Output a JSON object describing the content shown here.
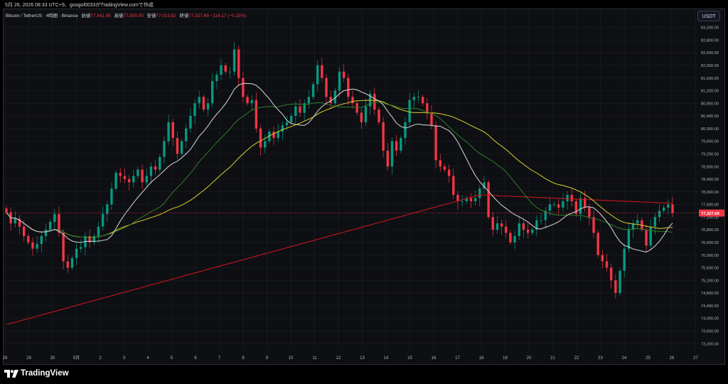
{
  "header": {
    "timestamp": "5月 26, 2026 08:33 UTC+9、googol0033がTradingView.comで作成",
    "symbol": "Bitcoin / TetherUS · 4時間 · Binance",
    "ohlc": {
      "open_label": "始値",
      "open": "77,441.85",
      "high_label": "高値",
      "high": "77,500.00",
      "low_label": "安値",
      "low": "77,019.82",
      "close_label": "終値",
      "close": "77,327.69",
      "change": "−114.17 (−0.15%)"
    }
  },
  "currency_button": "USDT",
  "brand": "TradingView",
  "colors": {
    "up": "#089981",
    "down": "#f23645",
    "background": "#0e0f13",
    "grid": "#1c1f26",
    "ma_fast": "#c9c9c9",
    "ma_mid": "#2f7d2a",
    "ma_slow": "#c8c02a",
    "ma_long": "#c8161c",
    "price_line": "#f23645"
  },
  "chart_data": {
    "type": "candlestick",
    "interval": "4時間",
    "y_axis": {
      "range": [
        73000,
        83300
      ],
      "ticks": [
        "73,200.00",
        "73,600.00",
        "74,000.00",
        "74,400.00",
        "74,800.00",
        "75,200.00",
        "75,600.00",
        "76,000.00",
        "76,400.00",
        "76,800.00",
        "77,200.00",
        "77,600.00",
        "78,000.00",
        "78,400.00",
        "78,800.00",
        "79,200.00",
        "79,600.00",
        "80,000.00",
        "80,400.00",
        "80,800.00",
        "81,200.00",
        "81,600.00",
        "82,000.00",
        "82,400.00",
        "82,800.00",
        "83,200.00"
      ]
    },
    "x_axis": {
      "labels": [
        "28",
        "29",
        "30",
        "5月",
        "2",
        "3",
        "4",
        "5",
        "6",
        "7",
        "8",
        "9",
        "10",
        "11",
        "12",
        "13",
        "14",
        "15",
        "16",
        "17",
        "18",
        "19",
        "20",
        "21",
        "22",
        "23",
        "24",
        "25",
        "26",
        "27"
      ]
    },
    "last_price": {
      "value": 77327.69,
      "label": "77,327.69"
    },
    "ohlc_closes": [
      77350,
      77000,
      77150,
      76900,
      76600,
      76400,
      76200,
      76350,
      76600,
      76800,
      77050,
      77300,
      76700,
      75800,
      75600,
      75900,
      76200,
      76250,
      76600,
      76400,
      76600,
      76900,
      77300,
      77600,
      78100,
      78600,
      78500,
      78400,
      78300,
      78500,
      78700,
      78300,
      78500,
      78800,
      78700,
      79100,
      79600,
      80200,
      79700,
      79200,
      79600,
      80000,
      80400,
      80800,
      81000,
      80600,
      80800,
      81500,
      81700,
      82000,
      81800,
      81800,
      82500,
      81600,
      81000,
      80800,
      80900,
      80000,
      79400,
      79600,
      79900,
      79700,
      79900,
      80100,
      80200,
      80400,
      80700,
      80500,
      80800,
      81000,
      81400,
      82000,
      81600,
      81000,
      80800,
      81200,
      81800,
      81600,
      81000,
      80800,
      80500,
      80200,
      80700,
      81100,
      80600,
      80200,
      79300,
      78800,
      79600,
      79300,
      79700,
      80200,
      80900,
      81000,
      81000,
      80800,
      80500,
      80100,
      79000,
      78800,
      78700,
      78500,
      77900,
      77700,
      77700,
      77800,
      77700,
      77800,
      78100,
      78300,
      77200,
      76800,
      77000,
      76900,
      76700,
      76400,
      76600,
      77000,
      76800,
      76700,
      76800,
      77100,
      77100,
      77400,
      77600,
      77600,
      77500,
      77700,
      77900,
      77700,
      77300,
      77800,
      77500,
      77200,
      76700,
      76000,
      75800,
      75600,
      75200,
      74800,
      75500,
      76200,
      76800,
      77000,
      77100,
      76800,
      76300,
      76900,
      77200,
      77400,
      77500,
      77600,
      77327.69
    ],
    "series": [
      {
        "name": "",
        "color": "#c9c9c9"
      },
      {
        "name": "",
        "color": "#2f7d2a"
      },
      {
        "name": "",
        "color": "#c8c02a"
      },
      {
        "name": "",
        "color": "#c8161c"
      }
    ]
  }
}
